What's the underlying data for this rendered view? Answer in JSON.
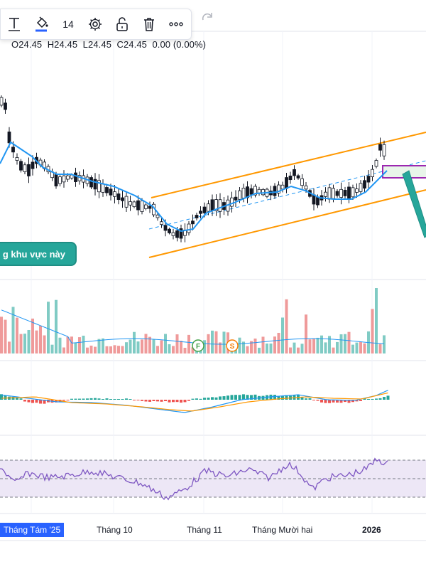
{
  "toolbar": {
    "font_size": "14",
    "tools": [
      "text-tool",
      "paint-bucket",
      "font-size",
      "settings",
      "lock",
      "delete",
      "more"
    ]
  },
  "ohlc": {
    "open": "O24.45",
    "high": "H24.45",
    "low": "L24.45",
    "close": "C24.45",
    "change": "0.00 (0.00%)"
  },
  "tooltip_text": "g khu vực này",
  "markers": {
    "f": "F",
    "s": "S"
  },
  "x_axis": [
    "Tháng Tám '25",
    "Tháng 10",
    "Tháng 11",
    "Tháng Mười hai",
    "2026"
  ],
  "colors": {
    "up": "#26a69a",
    "down": "#ef5350",
    "ma": "#2196f3",
    "channel": "#ff9800",
    "rsi": "#7e57c2",
    "rsi_band": "#ede7f6",
    "highlight": "#9c27b0"
  }
}
